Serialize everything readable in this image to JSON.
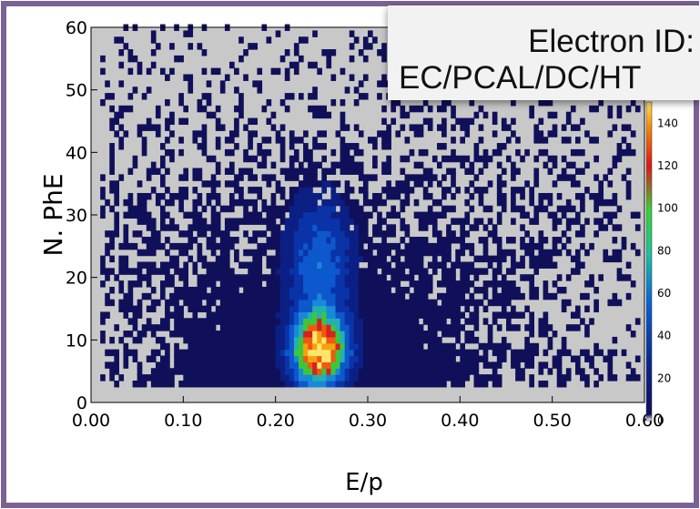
{
  "overlay": {
    "line1": "Electron ID:",
    "line2": "EC/PCAL/DC/HT"
  },
  "chart_data": {
    "type": "heatmap",
    "xlabel": "E/p",
    "ylabel": "N. PhE",
    "xlim": [
      0.0,
      0.6
    ],
    "ylim": [
      0,
      60
    ],
    "x_ticks": [
      "0.00",
      "0.10",
      "0.20",
      "0.30",
      "0.40",
      "0.50",
      "0.60"
    ],
    "y_ticks": [
      "0",
      "10",
      "20",
      "30",
      "40",
      "50",
      "60"
    ],
    "colorbar": {
      "range": [
        0,
        150
      ],
      "ticks": [
        "0",
        "20",
        "40",
        "60",
        "80",
        "100",
        "120",
        "140"
      ]
    },
    "peak": {
      "x": 0.245,
      "y": 8,
      "value": 150
    },
    "background_color": "#c8c8c8",
    "grid": false
  }
}
